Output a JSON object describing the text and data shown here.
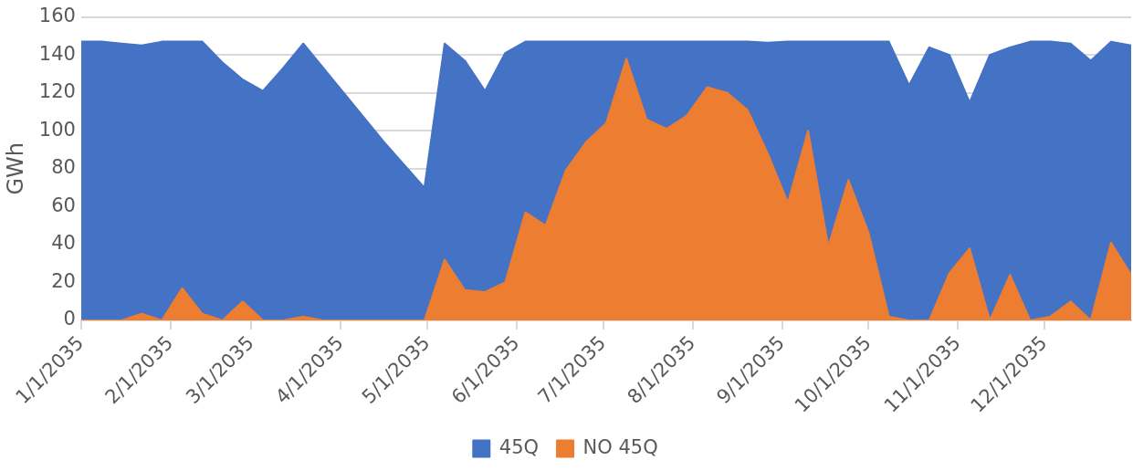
{
  "chart_data": {
    "type": "area",
    "ylabel": "GWh",
    "x": [
      "2035-01-01",
      "2035-01-08",
      "2035-01-15",
      "2035-01-22",
      "2035-01-29",
      "2035-02-05",
      "2035-02-12",
      "2035-02-19",
      "2035-02-26",
      "2035-03-05",
      "2035-03-12",
      "2035-03-19",
      "2035-03-26",
      "2035-04-02",
      "2035-04-09",
      "2035-04-16",
      "2035-04-23",
      "2035-04-30",
      "2035-05-07",
      "2035-05-14",
      "2035-05-21",
      "2035-05-28",
      "2035-06-04",
      "2035-06-11",
      "2035-06-18",
      "2035-06-25",
      "2035-07-02",
      "2035-07-09",
      "2035-07-16",
      "2035-07-23",
      "2035-07-30",
      "2035-08-06",
      "2035-08-13",
      "2035-08-20",
      "2035-08-27",
      "2035-09-03",
      "2035-09-10",
      "2035-09-17",
      "2035-09-24",
      "2035-10-01",
      "2035-10-08",
      "2035-10-15",
      "2035-10-22",
      "2035-10-29",
      "2035-11-05",
      "2035-11-12",
      "2035-11-19",
      "2035-11-26",
      "2035-12-03",
      "2035-12-10",
      "2035-12-17",
      "2035-12-24",
      "2035-12-31"
    ],
    "series": [
      {
        "name": "45Q",
        "color": "#4472c4",
        "values": [
          147,
          147,
          146,
          145,
          147,
          147,
          147,
          136,
          127,
          121,
          133,
          146,
          133,
          120,
          107,
          94,
          82,
          70,
          146,
          137,
          121,
          141,
          147,
          147,
          147,
          147,
          147,
          147,
          147,
          147,
          147,
          147,
          147,
          147,
          146.5,
          147,
          147,
          147,
          147,
          147,
          147,
          124,
          144,
          140,
          115,
          140,
          144,
          147,
          147,
          146,
          137,
          147,
          145
        ]
      },
      {
        "name": "NO 45Q",
        "color": "#ed7d31",
        "values": [
          0,
          0,
          0,
          3.5,
          0,
          17,
          3.5,
          0,
          10,
          0,
          0,
          2,
          0,
          0,
          0,
          0,
          0,
          0,
          32,
          16,
          15,
          20,
          57,
          50,
          79,
          94,
          104,
          138,
          106,
          101,
          108,
          123,
          120,
          111,
          88,
          62,
          100,
          39,
          74,
          46,
          2,
          0,
          0,
          25,
          38,
          0,
          24,
          0,
          2,
          10,
          0,
          41,
          24
        ]
      }
    ],
    "xlim": [
      "2035-01-01",
      "2035-12-31"
    ],
    "xticks": [
      {
        "value": "2035-01-01",
        "label": "1/1/2035"
      },
      {
        "value": "2035-02-01",
        "label": "2/1/2035"
      },
      {
        "value": "2035-03-01",
        "label": "3/1/2035"
      },
      {
        "value": "2035-04-01",
        "label": "4/1/2035"
      },
      {
        "value": "2035-05-01",
        "label": "5/1/2035"
      },
      {
        "value": "2035-06-01",
        "label": "6/1/2035"
      },
      {
        "value": "2035-07-01",
        "label": "7/1/2035"
      },
      {
        "value": "2035-08-01",
        "label": "8/1/2035"
      },
      {
        "value": "2035-09-01",
        "label": "9/1/2035"
      },
      {
        "value": "2035-10-01",
        "label": "10/1/2035"
      },
      {
        "value": "2035-11-01",
        "label": "11/1/2035"
      },
      {
        "value": "2035-12-01",
        "label": "12/1/2035"
      }
    ],
    "ylim": [
      0,
      160
    ],
    "yticks": [
      0,
      20,
      40,
      60,
      80,
      100,
      120,
      140,
      160
    ],
    "grid": "y",
    "legend": "bottom"
  }
}
